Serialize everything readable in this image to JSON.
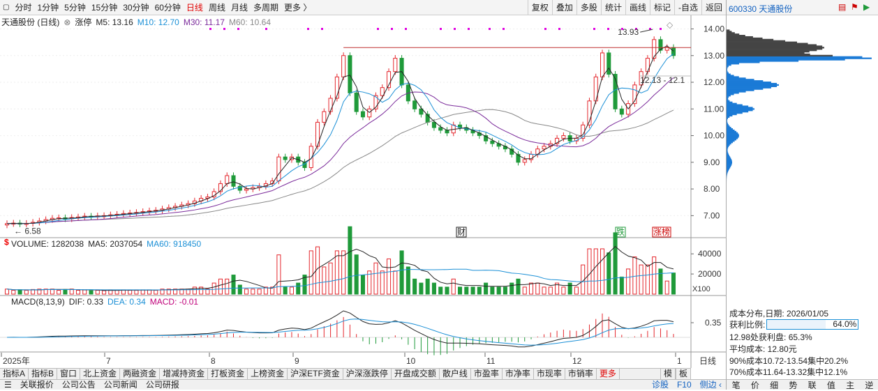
{
  "toolbar": {
    "periods": [
      "分时",
      "1分钟",
      "5分钟",
      "15分钟",
      "30分钟",
      "60分钟",
      "日线",
      "周线",
      "月线",
      "多周期",
      "更多 〉"
    ],
    "active_period": "日线",
    "right_buttons": [
      "复权",
      "叠加",
      "多股",
      "统计",
      "画线",
      "标记",
      "-自选",
      "返回"
    ]
  },
  "stock": {
    "code": "600330",
    "name": "天通股份"
  },
  "legend_main": {
    "title": "天通股份 (日线)",
    "zt": "涨停",
    "ma5": "M5: 13.16",
    "ma10": "M10: 12.70",
    "ma30": "M30: 11.17",
    "ma60": "M60: 10.64"
  },
  "legend_volume": {
    "vol": "VOLUME: 1282038",
    "ma5": "MA5: 2037054",
    "ma60": "MA60: 918450"
  },
  "legend_macd": {
    "name": "MACD(8,13,9)",
    "dif": "DIF: 0.33",
    "dea": "DEA: 0.34",
    "macd": "MACD: -0.01"
  },
  "annotations": {
    "high": "13.93",
    "low": "6.58",
    "range": "12.13 - 12.1",
    "marks": [
      "财",
      "跌",
      "涨榜"
    ],
    "volume_unit": "X100",
    "macd_level": "0.35",
    "s_mark": "$"
  },
  "colors": {
    "up": "#e4262c",
    "down": "#1f9a3a",
    "ma5": "#222222",
    "ma10": "#1a8fd6",
    "ma30": "#7a2a9a",
    "ma60": "#888888",
    "dotted": "#e000e0"
  },
  "chart_data": [
    {
      "type": "candlestick",
      "title": "天通股份 (日线)",
      "y_ticks": [
        7.0,
        8.0,
        9.0,
        10.0,
        11.0,
        12.0,
        13.0,
        14.0
      ],
      "ylim": [
        6.2,
        14.3
      ],
      "x_ticks": [
        "2025年",
        "7",
        "8",
        "9",
        "10",
        "11",
        "12",
        "1",
        "日线"
      ],
      "series_close": [
        6.7,
        6.72,
        6.69,
        6.71,
        6.75,
        6.8,
        6.85,
        6.9,
        6.92,
        6.88,
        6.93,
        6.95,
        6.98,
        6.97,
        6.99,
        7.0,
        7.03,
        7.05,
        7.08,
        7.1,
        7.12,
        7.15,
        7.18,
        7.2,
        7.25,
        7.3,
        7.35,
        7.4,
        7.45,
        7.55,
        7.65,
        7.7,
        7.9,
        8.2,
        8.5,
        8.1,
        7.95,
        8.0,
        8.05,
        8.1,
        8.2,
        8.3,
        9.2,
        9.1,
        9.2,
        9.0,
        8.8,
        9.6,
        10.5,
        10.9,
        11.4,
        12.2,
        13.0,
        11.6,
        10.9,
        10.7,
        11.0,
        11.5,
        11.8,
        12.4,
        12.9,
        11.9,
        11.3,
        11.0,
        10.8,
        10.5,
        10.3,
        10.2,
        10.1,
        10.4,
        10.3,
        10.2,
        10.1,
        10.0,
        9.8,
        9.7,
        9.6,
        9.5,
        9.3,
        9.0,
        9.1,
        9.3,
        9.5,
        9.6,
        9.7,
        9.9,
        10.0,
        9.8,
        9.9,
        10.4,
        11.3,
        12.2,
        13.1,
        12.3,
        11.0,
        10.8,
        11.2,
        11.9,
        12.4,
        12.9,
        13.6,
        13.2,
        13.3,
        13.0
      ],
      "ma_latest": {
        "M5": 13.16,
        "M10": 12.7,
        "M30": 11.17,
        "M60": 10.64
      },
      "high": 13.93,
      "low": 6.58
    },
    {
      "type": "bar",
      "title": "VOLUME",
      "y_ticks": [
        20000,
        40000
      ],
      "latest": 1282038,
      "ma5": 2037054,
      "ma60": 918450
    },
    {
      "type": "bar",
      "title": "MACD(8,13,9)",
      "dif": 0.33,
      "dea": 0.34,
      "macd": -0.01,
      "y_ticks": [
        0.35
      ]
    }
  ],
  "cost_distribution": {
    "date_label": "成本分布,日期:",
    "date": "2026/01/05",
    "profit_label": "获利比例:",
    "profit_ratio": "64.0%",
    "profit_ratio_value": 0.64,
    "line1": "12.98处获利盘: 65.3%",
    "line2": "平均成本: 12.80元",
    "line3": "90%成本10.72-13.54集中20.2%",
    "line4": "70%成本11.64-13.32集中12.1%"
  },
  "bottom_tabs": [
    "指标A",
    "指标B",
    "窗口",
    "北上资金",
    "两融资金",
    "增减持资金",
    "打板资金",
    "上榜资金",
    "沪深ETF资金",
    "沪深涨跌停",
    "开盘成交额",
    "散户线",
    "市盈率",
    "市净率",
    "市现率",
    "市销率",
    "更多"
  ],
  "bottom_right_tabs": [
    "模",
    "板"
  ],
  "bottom_bar": [
    "关联报价",
    "公司公告",
    "公司新闻",
    "公司研报"
  ],
  "bottom_bar_right": [
    "诊股",
    "F10",
    "侧边 ‹"
  ],
  "rp_bottom": [
    "笔",
    "价",
    "细",
    "势",
    "联",
    "值",
    "主",
    "逆"
  ]
}
